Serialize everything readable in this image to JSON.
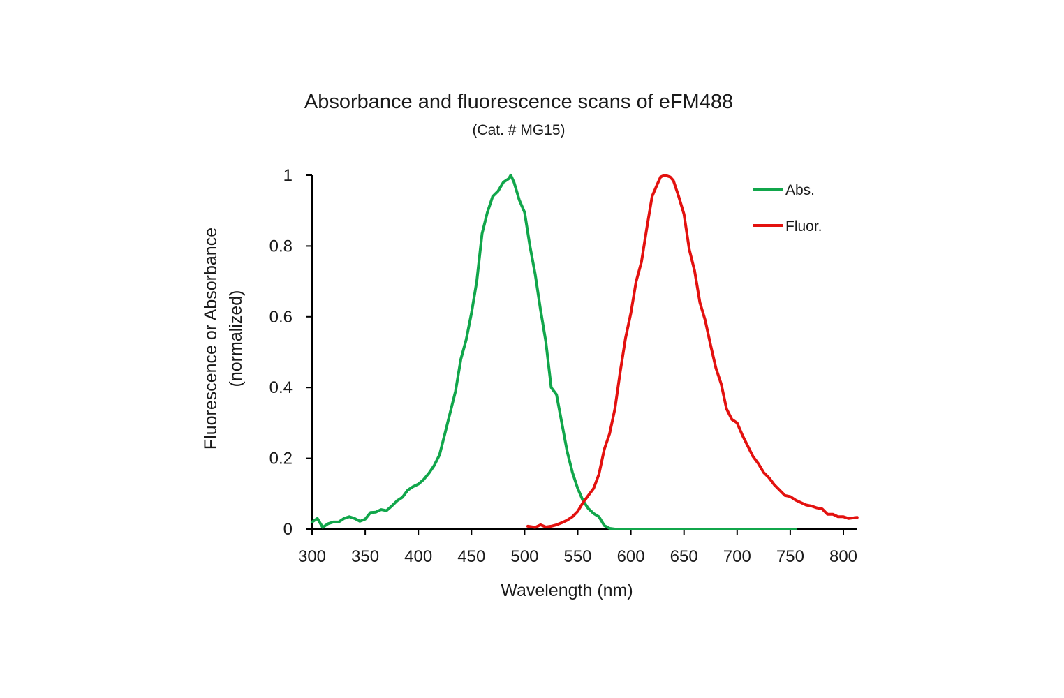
{
  "chart_data": {
    "type": "line",
    "title": "Absorbance and fluorescence scans of eFM488",
    "subtitle": "(Cat. # MG15)",
    "xlabel": "Wavelength (nm)",
    "ylabel_line1": "Fluorescence or Absorbance",
    "ylabel_line2": "(normalized)",
    "xlim": [
      300,
      815
    ],
    "ylim": [
      0,
      1
    ],
    "x_ticks": [
      300,
      350,
      400,
      450,
      500,
      550,
      600,
      650,
      700,
      750,
      800
    ],
    "y_ticks": [
      0,
      0.2,
      0.4,
      0.6,
      0.8,
      1
    ],
    "y_tick_labels": [
      "0",
      "0.2",
      "0.4",
      "0.6",
      "0.8",
      "1"
    ],
    "grid": false,
    "legend_position": "top-right",
    "series": [
      {
        "name": "Abs.",
        "color": "#11a64b",
        "x": [
          300,
          305,
          310,
          315,
          320,
          325,
          330,
          335,
          340,
          345,
          350,
          355,
          360,
          365,
          370,
          375,
          380,
          385,
          390,
          395,
          400,
          405,
          410,
          415,
          420,
          425,
          430,
          435,
          440,
          445,
          450,
          455,
          460,
          465,
          470,
          475,
          480,
          485,
          487,
          490,
          495,
          500,
          505,
          510,
          515,
          520,
          525,
          530,
          535,
          540,
          545,
          550,
          555,
          560,
          565,
          570,
          575,
          580,
          585,
          590,
          600,
          650,
          700,
          750,
          755
        ],
        "y": [
          0.02,
          0.03,
          0.005,
          0.015,
          0.02,
          0.02,
          0.03,
          0.035,
          0.03,
          0.022,
          0.028,
          0.047,
          0.048,
          0.055,
          0.052,
          0.065,
          0.08,
          0.09,
          0.11,
          0.12,
          0.127,
          0.14,
          0.158,
          0.18,
          0.21,
          0.27,
          0.33,
          0.39,
          0.48,
          0.535,
          0.61,
          0.7,
          0.835,
          0.895,
          0.94,
          0.955,
          0.98,
          0.99,
          1.0,
          0.98,
          0.93,
          0.895,
          0.8,
          0.72,
          0.62,
          0.53,
          0.4,
          0.38,
          0.3,
          0.22,
          0.16,
          0.115,
          0.08,
          0.058,
          0.044,
          0.035,
          0.01,
          0.002,
          0,
          0,
          0,
          0,
          0,
          0,
          0
        ]
      },
      {
        "name": "Fluor.",
        "color": "#e3110f",
        "x": [
          503,
          510,
          515,
          520,
          525,
          530,
          535,
          540,
          545,
          550,
          555,
          560,
          565,
          570,
          575,
          580,
          585,
          590,
          595,
          600,
          605,
          610,
          615,
          620,
          625,
          628,
          632,
          637,
          640,
          645,
          650,
          655,
          660,
          665,
          670,
          675,
          680,
          685,
          690,
          695,
          700,
          705,
          710,
          715,
          720,
          725,
          730,
          735,
          740,
          745,
          750,
          755,
          760,
          765,
          770,
          775,
          780,
          785,
          790,
          795,
          800,
          805,
          810,
          813
        ],
        "y": [
          0.008,
          0.005,
          0.012,
          0.006,
          0.008,
          0.012,
          0.018,
          0.025,
          0.035,
          0.05,
          0.075,
          0.095,
          0.115,
          0.155,
          0.225,
          0.27,
          0.34,
          0.445,
          0.54,
          0.61,
          0.7,
          0.755,
          0.85,
          0.94,
          0.975,
          0.995,
          1.0,
          0.995,
          0.985,
          0.94,
          0.89,
          0.79,
          0.73,
          0.64,
          0.59,
          0.52,
          0.455,
          0.41,
          0.34,
          0.31,
          0.3,
          0.265,
          0.235,
          0.205,
          0.185,
          0.16,
          0.145,
          0.125,
          0.11,
          0.095,
          0.092,
          0.082,
          0.075,
          0.068,
          0.065,
          0.06,
          0.057,
          0.042,
          0.042,
          0.035,
          0.035,
          0.03,
          0.032,
          0.033
        ]
      }
    ]
  }
}
